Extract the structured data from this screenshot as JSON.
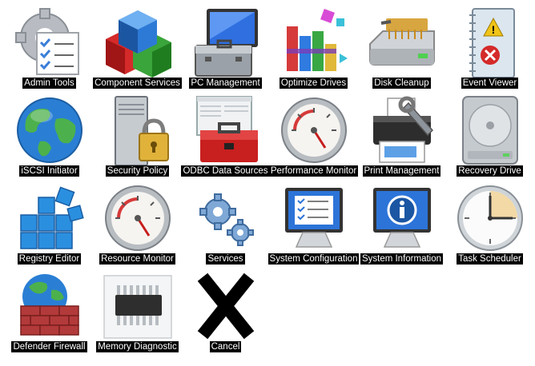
{
  "tools": [
    {
      "label": "Admin Tools",
      "icon": "admin-tools-icon"
    },
    {
      "label": "Component Services",
      "icon": "component-services-icon"
    },
    {
      "label": "PC Management",
      "icon": "pc-management-icon"
    },
    {
      "label": "Optimize Drives",
      "icon": "optimize-drives-icon"
    },
    {
      "label": "Disk Cleanup",
      "icon": "disk-cleanup-icon"
    },
    {
      "label": "Event Viewer",
      "icon": "event-viewer-icon"
    },
    {
      "label": "iSCSI Initiator",
      "icon": "globe-icon"
    },
    {
      "label": "Security Policy",
      "icon": "security-policy-icon"
    },
    {
      "label": "ODBC Data Sources",
      "icon": "toolbox-icon"
    },
    {
      "label": "Performance Monitor",
      "icon": "gauge-icon"
    },
    {
      "label": "Print Management",
      "icon": "printer-icon"
    },
    {
      "label": "Recovery Drive",
      "icon": "drive-icon"
    },
    {
      "label": "Registry Editor",
      "icon": "registry-cubes-icon"
    },
    {
      "label": "Resource Monitor",
      "icon": "gauge-icon"
    },
    {
      "label": "Services",
      "icon": "gears-icon"
    },
    {
      "label": "System Configuration",
      "icon": "monitor-checklist-icon"
    },
    {
      "label": "System Information",
      "icon": "monitor-info-icon"
    },
    {
      "label": "Task Scheduler",
      "icon": "clock-icon"
    },
    {
      "label": "Defender Firewall",
      "icon": "firewall-icon"
    },
    {
      "label": "Memory Diagnostic",
      "icon": "memory-chip-icon"
    }
  ],
  "cancel": {
    "label": "Cancel",
    "icon": "cancel-x-icon"
  }
}
